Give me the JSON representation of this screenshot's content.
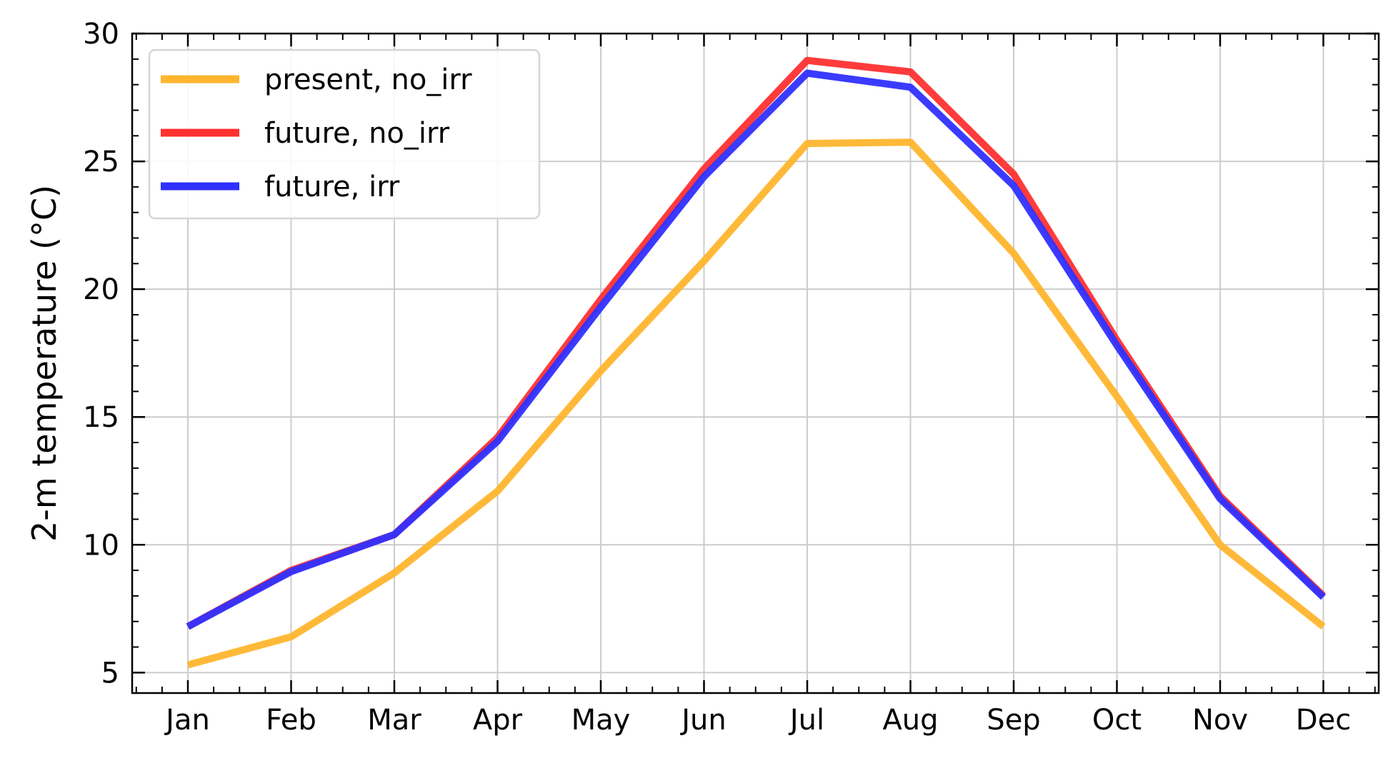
{
  "chart_data": {
    "type": "line",
    "title": "",
    "xlabel": "",
    "ylabel": "2-m temperature (°C)",
    "categories": [
      "Jan",
      "Feb",
      "Mar",
      "Apr",
      "May",
      "Jun",
      "Jul",
      "Aug",
      "Sep",
      "Oct",
      "Nov",
      "Dec"
    ],
    "ylim": [
      4.2,
      30.0
    ],
    "yticks": [
      5,
      10,
      15,
      20,
      25,
      30
    ],
    "grid": true,
    "legend_position": "top-left",
    "series": [
      {
        "name": "present, no_irr",
        "color": "#ffb52e",
        "values": [
          5.3,
          6.4,
          8.9,
          12.1,
          16.8,
          21.1,
          25.7,
          25.75,
          21.4,
          15.8,
          10.0,
          6.8
        ]
      },
      {
        "name": "future, no_irr",
        "color": "#ff3030",
        "values": [
          6.8,
          9.0,
          10.4,
          14.2,
          19.6,
          24.7,
          28.95,
          28.5,
          24.5,
          18.0,
          11.9,
          8.0
        ]
      },
      {
        "name": "future, irr",
        "color": "#3030ff",
        "values": [
          6.8,
          8.95,
          10.4,
          14.05,
          19.3,
          24.4,
          28.45,
          27.9,
          24.05,
          17.8,
          11.8,
          7.95
        ]
      }
    ]
  }
}
